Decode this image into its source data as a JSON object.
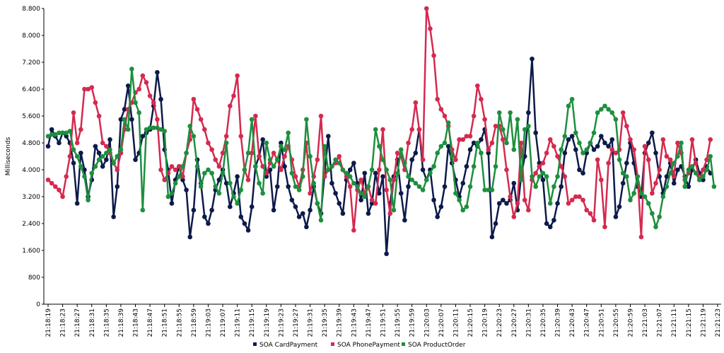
{
  "chart_data": {
    "type": "line",
    "y_label": "Milliseconds",
    "categories": [
      "21:18:19",
      null,
      null,
      null,
      "21:18:23",
      null,
      null,
      null,
      "21:18:27",
      null,
      null,
      null,
      "21:18:31",
      null,
      null,
      null,
      "21:18:35",
      null,
      null,
      null,
      "21:18:39",
      null,
      null,
      null,
      "21:18:43",
      null,
      null,
      null,
      "21:18:47",
      null,
      null,
      null,
      "21:18:51",
      null,
      null,
      null,
      "21:18:55",
      null,
      null,
      null,
      "21:18:59",
      null,
      null,
      null,
      "21:19:03",
      null,
      null,
      null,
      "21:19:07",
      null,
      null,
      null,
      "21:19:11",
      null,
      null,
      null,
      "21:19:15",
      null,
      null,
      null,
      "21:19:19",
      null,
      null,
      null,
      "21:19:23",
      null,
      null,
      null,
      "21:19:27",
      null,
      null,
      null,
      "21:19:31",
      null,
      null,
      null,
      "21:19:35",
      null,
      null,
      null,
      "21:19:39",
      null,
      null,
      null,
      "21:19:43",
      null,
      null,
      null,
      "21:19:47",
      null,
      null,
      null,
      "21:19:51",
      null,
      null,
      null,
      "21:19:55",
      null,
      null,
      null,
      "21:19:59",
      null,
      null,
      null,
      "21:20:03",
      null,
      null,
      null,
      "21:20:07",
      null,
      null,
      null,
      "21:20:11",
      null,
      null,
      null,
      "21:20:15",
      null,
      null,
      null,
      "21:20:19",
      null,
      null,
      null,
      "21:20:23",
      null,
      null,
      null,
      "21:20:27",
      null,
      null,
      null,
      "21:20:31",
      null,
      null,
      null,
      "21:20:35",
      null,
      null,
      null,
      "21:20:39",
      null,
      null,
      null,
      "21:20:43",
      null,
      null,
      null,
      "21:20:47",
      null,
      null,
      null,
      "21:20:51",
      null,
      null,
      null,
      "21:20:55",
      null,
      null,
      null,
      "21:20:59",
      null,
      null,
      null,
      "21:21:03",
      null,
      null,
      null,
      "21:21:07",
      null,
      null,
      null,
      "21:21:11",
      null,
      null,
      null,
      "21:21:15",
      null,
      null,
      null,
      "21:21:19",
      null,
      null,
      null,
      "21:21:23"
    ],
    "series": [
      {
        "name": "SOA CardPayment",
        "color": "#0d1a4a",
        "values": [
          4700,
          5200,
          5000,
          4800,
          5100,
          5000,
          4800,
          4200,
          3000,
          4500,
          4000,
          3200,
          3700,
          4700,
          4500,
          4100,
          4300,
          4900,
          2600,
          3500,
          5500,
          5800,
          6500,
          5500,
          4300,
          4500,
          5000,
          5100,
          5200,
          5900,
          6900,
          6100,
          4600,
          4000,
          3000,
          3700,
          4100,
          3700,
          3400,
          2000,
          2800,
          4300,
          3600,
          2600,
          2400,
          2800,
          3400,
          3700,
          4000,
          3600,
          2900,
          3300,
          3800,
          2600,
          2400,
          2200,
          2900,
          4100,
          4400,
          4900,
          3800,
          4000,
          2800,
          3500,
          4800,
          4100,
          3500,
          3100,
          2900,
          2600,
          2700,
          2300,
          2800,
          3500,
          3000,
          2700,
          3900,
          5000,
          3600,
          3300,
          3000,
          2700,
          3700,
          4000,
          4200,
          3600,
          3100,
          3900,
          2700,
          3000,
          3900,
          3300,
          3800,
          1500,
          3000,
          3800,
          4300,
          3300,
          2500,
          3500,
          4300,
          4500,
          5200,
          4000,
          3700,
          4000,
          3100,
          2600,
          2900,
          3500,
          4700,
          4200,
          3700,
          3200,
          3600,
          4100,
          4600,
          4800,
          4700,
          4900,
          5200,
          4500,
          2000,
          2400,
          3000,
          3100,
          3000,
          3100,
          3600,
          2800,
          3800,
          4400,
          5700,
          7300,
          5100,
          4200,
          3700,
          2400,
          2300,
          2500,
          3000,
          3500,
          4500,
          4900,
          5000,
          4600,
          4000,
          3900,
          4500,
          4800,
          4600,
          4700,
          5000,
          4800,
          4700,
          4900,
          2600,
          2900,
          3600,
          4200,
          4800,
          4200,
          3500,
          3200,
          4500,
          4800,
          5100,
          4500,
          3800,
          3300,
          3800,
          4200,
          3600,
          4000,
          4100,
          3800,
          3500,
          4000,
          4300,
          3900,
          3700,
          4100,
          3900,
          null,
          null
        ]
      },
      {
        "name": "SOA PhonePayment",
        "color": "#d42a4f",
        "values": [
          3700,
          3600,
          3500,
          3400,
          3200,
          3800,
          4400,
          5700,
          4800,
          5200,
          6400,
          6400,
          6450,
          6000,
          5600,
          4800,
          4700,
          4500,
          4200,
          4000,
          4500,
          5200,
          5800,
          6000,
          6300,
          6400,
          6800,
          6600,
          6200,
          6000,
          5500,
          4000,
          3700,
          3900,
          4100,
          4000,
          4100,
          3800,
          4500,
          4900,
          6100,
          5800,
          5500,
          5200,
          4800,
          4600,
          4300,
          4100,
          4500,
          5000,
          5900,
          6200,
          6800,
          5000,
          4000,
          3700,
          4500,
          5600,
          4400,
          4100,
          3900,
          4200,
          4500,
          4300,
          4000,
          4400,
          4700,
          4300,
          3800,
          3500,
          4000,
          4800,
          3300,
          3800,
          4300,
          5600,
          3800,
          4000,
          4100,
          4200,
          4400,
          4000,
          3800,
          3500,
          2200,
          3400,
          3700,
          3300,
          3500,
          3100,
          3000,
          4000,
          5200,
          3400,
          2700,
          3700,
          4500,
          4400,
          4000,
          4800,
          5200,
          6000,
          5200,
          4300,
          8800,
          8200,
          7400,
          6100,
          5800,
          5600,
          5300,
          4600,
          4300,
          4900,
          4900,
          5000,
          5000,
          5600,
          6500,
          6100,
          5500,
          4600,
          4800,
          5300,
          5300,
          4900,
          4000,
          3200,
          2600,
          3000,
          4800,
          3100,
          2800,
          3700,
          3900,
          4100,
          4200,
          4500,
          4900,
          4700,
          4400,
          4100,
          3800,
          3000,
          3100,
          3200,
          3200,
          3100,
          2800,
          2700,
          2500,
          4300,
          3700,
          2300,
          4200,
          4600,
          4500,
          4600,
          5700,
          5300,
          4900,
          4600,
          3800,
          2000,
          4700,
          4300,
          3300,
          3600,
          4000,
          4900,
          4400,
          4300,
          3800,
          4800,
          4500,
          3700,
          3900,
          4900,
          4200,
          3700,
          4000,
          4300,
          4900,
          null,
          null
        ]
      },
      {
        "name": "SOA ProductOrder",
        "color": "#1e8f3e",
        "values": [
          5000,
          5050,
          5050,
          5100,
          5100,
          5100,
          5150,
          4600,
          4400,
          4100,
          3800,
          3100,
          3900,
          4100,
          4300,
          4400,
          4500,
          4600,
          4200,
          4400,
          4600,
          5500,
          5200,
          7000,
          6000,
          5700,
          2800,
          5200,
          5250,
          5250,
          5250,
          5200,
          5150,
          3200,
          3300,
          3600,
          3800,
          4100,
          4500,
          5300,
          5000,
          4100,
          3500,
          3900,
          4000,
          3900,
          3500,
          3300,
          3900,
          4800,
          3600,
          3200,
          3000,
          3400,
          4000,
          4500,
          5500,
          4100,
          3600,
          3300,
          4800,
          4300,
          4100,
          4300,
          4700,
          4600,
          5100,
          3900,
          3500,
          3400,
          3800,
          5500,
          4400,
          3600,
          3000,
          2500,
          4700,
          4000,
          4100,
          4300,
          4200,
          4000,
          3900,
          3800,
          3600,
          3500,
          3300,
          3200,
          3500,
          4000,
          5200,
          4700,
          4300,
          4000,
          3700,
          2800,
          3900,
          4600,
          4200,
          3800,
          3700,
          3600,
          3500,
          3400,
          3700,
          3900,
          4100,
          4500,
          4700,
          4800,
          5400,
          4400,
          3300,
          3100,
          2800,
          2900,
          3500,
          4100,
          4800,
          4500,
          3400,
          3400,
          3400,
          4100,
          5700,
          5200,
          4800,
          5700,
          4600,
          5500,
          3700,
          5200,
          5300,
          3800,
          3500,
          3800,
          3900,
          3800,
          3000,
          3500,
          3800,
          4600,
          5000,
          5900,
          6100,
          5100,
          4800,
          4500,
          4600,
          4800,
          5100,
          5700,
          5800,
          5900,
          5800,
          5700,
          5500,
          4300,
          3900,
          3800,
          3100,
          3300,
          3800,
          3300,
          3200,
          3000,
          2700,
          2300,
          2600,
          3200,
          3500,
          3900,
          4200,
          4400,
          4800,
          3500,
          4000,
          4100,
          3900,
          3700,
          3800,
          4000,
          4400,
          3500,
          null
        ]
      }
    ],
    "ylim": [
      0,
      8800
    ],
    "yticks": [
      0,
      800,
      {
        "value": 1600,
        "label": "1.600"
      },
      {
        "value": 2400,
        "label": "2.400"
      },
      {
        "value": 3200,
        "label": "3.200"
      },
      {
        "value": 4000,
        "label": "4.000"
      },
      {
        "value": 4800,
        "label": "4.800"
      },
      {
        "value": 5600,
        "label": "5.600"
      },
      {
        "value": 6400,
        "label": "6.400"
      },
      {
        "value": 7200,
        "label": "7.200"
      },
      {
        "value": 8000,
        "label": "8.000"
      },
      {
        "value": 8800,
        "label": "8.800"
      }
    ],
    "grid": false,
    "legend": "bottom"
  }
}
